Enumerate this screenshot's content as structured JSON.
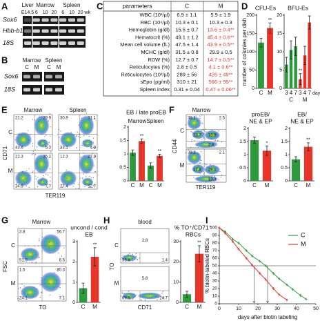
{
  "panel_labels": [
    "A",
    "B",
    "C",
    "D",
    "E",
    "F",
    "G",
    "H",
    "I"
  ],
  "gel_a": {
    "tissues": [
      "Liver",
      "Marrow",
      "Spleen"
    ],
    "ages": [
      "E14.5",
      "6",
      "10",
      "20",
      "6",
      "10",
      "20 wk"
    ],
    "rows": [
      "Sox6",
      "Hbb-b1",
      "18S"
    ]
  },
  "gel_b": {
    "tissues": [
      "Marrow",
      "Spleen"
    ],
    "lanes": [
      "C",
      "M",
      "C",
      "M"
    ],
    "rows": [
      "Sox6",
      "18S"
    ]
  },
  "table": {
    "header": [
      "parameters",
      "C",
      "M"
    ],
    "rows": [
      [
        "WBC (10³/µl)",
        "6.9 ± 1.1",
        "5.9 ± 1.9"
      ],
      [
        "RBC (10⁶/µl)",
        "10.3 ± 0.1",
        "10.3 ± 0.3"
      ],
      [
        "Hemoglobin (g/dl)",
        "15.5 ± 0.7",
        "13.6 ± 0.4**"
      ],
      [
        "Hematocrit (%)",
        "49.1 ± 1.2",
        "45.4 ± 0.6**"
      ],
      [
        "Mean cell volume (fL)",
        "47.5 ± 1.4",
        "43.9 ± 0.5**"
      ],
      [
        "MCHC (g/dl)",
        "31.5 ± 0.8",
        "29.9 ± 0.5"
      ],
      [
        "RDW (%)",
        "12.7 ± 0.7",
        "14.7 ± 0.5**"
      ],
      [
        "Reticulocytes (%)",
        "2.8 ± 0.5",
        "4.1 ± 0.6**"
      ],
      [
        "Reticulocytes (10³/µl)",
        "289 ± 56",
        "426 ± 49**"
      ],
      [
        "sEpo (pg/ml)",
        "310 ± 21",
        "566 ± 95**"
      ],
      [
        "Spleen index",
        "0.31 ± 0.04",
        "0.47 ± 0.06**"
      ]
    ],
    "m_colors": [
      "#111",
      "#111",
      "#e8352a",
      "#e8352a",
      "#e8352a",
      "#111",
      "#e8352a",
      "#e8352a",
      "#e8352a",
      "#e8352a",
      "#e8352a"
    ]
  },
  "flow_e": {
    "columns": [
      "Marrow",
      "Spleen"
    ],
    "rows": [
      "C",
      "M"
    ],
    "y_label": "CD71",
    "x_label": "TER119",
    "plots": [
      [
        "21.2",
        "29.9",
        "43.6",
        "5.3"
      ],
      [
        "30.9",
        "31.1",
        "33.1",
        "4.9"
      ],
      [
        "22.3",
        "35.2",
        "34.9",
        "7.7"
      ],
      [
        "12.3",
        "27.9",
        "27.4",
        "12.7"
      ]
    ]
  },
  "flow_f": {
    "title": "Marrow",
    "rows": [
      "C",
      "M"
    ],
    "y_label": "CD44",
    "x_label": "TER119",
    "plots": [
      [
        "38.1",
        "2.5",
        "13.7",
        "18.9",
        "2.8"
      ],
      [
        "38.1",
        "2.1",
        "17.8",
        "29.1",
        "13.3"
      ]
    ]
  },
  "flow_g": {
    "title": "Marrow",
    "rows": [
      "C",
      "M"
    ],
    "y_label": "FSC",
    "x_label": "TO",
    "plots": [
      [
        "3.8",
        "56.7",
        "51.0",
        "6.5"
      ],
      [
        "1.5",
        "80.3",
        "24.1",
        "7.1"
      ]
    ]
  },
  "flow_h": {
    "title": "blood",
    "rows": [
      "C",
      "M"
    ],
    "y_label": "TO",
    "x_label": "CD71",
    "plots": [
      [
        "2.8",
        "95.8",
        "1.4"
      ],
      [
        "5.8",
        "69.5",
        "24.7"
      ]
    ]
  },
  "chart_data": [
    {
      "type": "bar",
      "title": "CFU-Es",
      "ylabel": "number of colonies per dish",
      "categories": [
        "C",
        "M"
      ],
      "values": [
        125,
        165
      ],
      "errors": [
        12,
        14
      ],
      "colors": [
        "#2e9a3e",
        "#e8352a"
      ],
      "stars": [
        null,
        "**"
      ],
      "ylim": [
        0,
        200
      ],
      "yticks": [
        0,
        50,
        100,
        150,
        200
      ]
    },
    {
      "type": "bar",
      "title": "BFU-Es",
      "categories": [
        "3",
        "4",
        "7",
        "3",
        "4",
        "7"
      ],
      "xlabel": "days",
      "groups": [
        "C",
        "M"
      ],
      "groups_at": "bottom",
      "values": [
        6.5,
        10.5,
        11.5,
        2.5,
        9,
        18
      ],
      "errors": [
        2,
        2.5,
        2.5,
        1.5,
        2.5,
        1.8
      ],
      "colors": [
        "#2e9a3e",
        "#2e9a3e",
        "#2e9a3e",
        "#e8352a",
        "#e8352a",
        "#e8352a"
      ],
      "stars": [
        null,
        null,
        null,
        "**",
        null,
        null
      ],
      "ylim": [
        0,
        20
      ],
      "yticks": [
        0,
        5,
        10,
        15,
        20
      ]
    },
    {
      "type": "bar",
      "title": "EB / late proEB",
      "groups": [
        "Marrow",
        "Spleen"
      ],
      "groups_at": "top",
      "categories": [
        "C",
        "M",
        "C",
        "M"
      ],
      "values": [
        1.05,
        1.48,
        0.57,
        0.93
      ],
      "errors": [
        0.1,
        0.08,
        0.1,
        0.06
      ],
      "colors": [
        "#2e9a3e",
        "#e8352a",
        "#2e9a3e",
        "#e8352a"
      ],
      "stars": [
        null,
        "**",
        null,
        "**"
      ],
      "ylim": [
        0,
        2
      ],
      "yticks": [
        0,
        0.5,
        1,
        1.5,
        2
      ]
    },
    {
      "type": "bar",
      "title": [
        "proEB/",
        "NE & EP"
      ],
      "categories": [
        "C",
        "M"
      ],
      "values": [
        1.55,
        1.15
      ],
      "errors": [
        0.12,
        0.18
      ],
      "colors": [
        "#2e9a3e",
        "#e8352a"
      ],
      "stars": [
        null,
        "*"
      ],
      "ylim": [
        0,
        2
      ],
      "yticks": [
        0,
        0.5,
        1,
        1.5,
        2
      ]
    },
    {
      "type": "bar",
      "title": [
        "EB/",
        "NE & EP"
      ],
      "categories": [
        "C",
        "M"
      ],
      "values": [
        0.82,
        1.3
      ],
      "errors": [
        0.1,
        0.15
      ],
      "colors": [
        "#2e9a3e",
        "#e8352a"
      ],
      "stars": [
        null,
        "**"
      ],
      "ylim": [
        0,
        2
      ],
      "yticks": [
        0,
        0.5,
        1,
        1.5,
        2
      ]
    },
    {
      "type": "bar",
      "title": [
        "uncond / cond",
        "EB"
      ],
      "categories": [
        "C",
        "M"
      ],
      "values": [
        0.7,
        2.25
      ],
      "errors": [
        0.25,
        0.45
      ],
      "colors": [
        "#2e9a3e",
        "#e8352a"
      ],
      "stars": [
        null,
        "**"
      ],
      "ylim": [
        0,
        3
      ],
      "yticks": [
        0,
        1,
        2,
        3
      ]
    },
    {
      "type": "bar",
      "title": [
        "% TO⁺/CD71⁺",
        "RBCs"
      ],
      "categories": [
        "C",
        "M"
      ],
      "values": [
        4,
        24
      ],
      "errors": [
        1.5,
        4
      ],
      "colors": [
        "#2e9a3e",
        "#e8352a"
      ],
      "stars": [
        null,
        "**"
      ],
      "ylim": [
        0,
        30
      ],
      "yticks": [
        0,
        10,
        20,
        30
      ]
    },
    {
      "type": "line",
      "xlabel": "days after biotin labeling",
      "ylabel": "% biotin-labeled RBCs",
      "x": [
        0,
        3,
        7,
        10,
        14,
        17,
        21,
        24,
        28,
        31,
        35,
        38,
        42,
        45
      ],
      "series": [
        {
          "name": "C",
          "color": "#2e9a3e",
          "values": [
            100,
            95,
            85,
            80,
            70,
            63,
            56,
            50,
            40,
            33,
            25,
            19,
            11,
            6
          ]
        },
        {
          "name": "M",
          "color": "#e8352a",
          "values": [
            100,
            93,
            82,
            72,
            60,
            51,
            40,
            32,
            20,
            12,
            5,
            null,
            null,
            null
          ]
        }
      ],
      "ref_y": 50,
      "ref_x": [
        18,
        25
      ],
      "xlim": [
        0,
        50
      ],
      "xticks": [
        0,
        10,
        20,
        30,
        40,
        50
      ],
      "ylim": [
        0,
        100
      ],
      "yticks": [
        0,
        10,
        20,
        30,
        40,
        50,
        60,
        70,
        80,
        90,
        100
      ]
    }
  ]
}
